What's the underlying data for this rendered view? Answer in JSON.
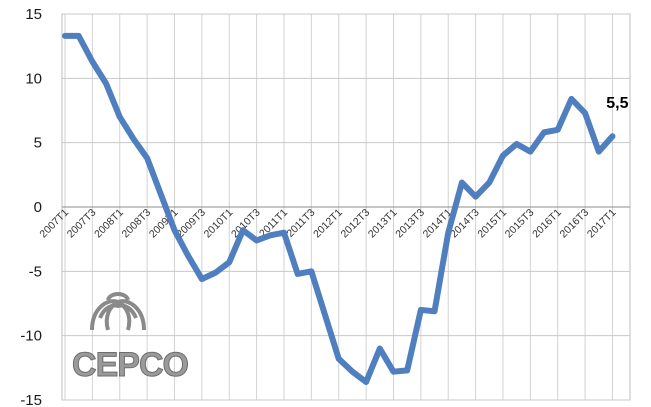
{
  "chart_data": {
    "type": "line",
    "title": "",
    "xlabel": "",
    "ylabel": "",
    "ylim": [
      -15,
      15
    ],
    "yticks": [
      15,
      10,
      5,
      0,
      -5,
      -10,
      -15
    ],
    "ytick_labels": [
      "15",
      "10",
      "5",
      "0",
      "-5",
      "-10",
      "-15"
    ],
    "grid": true,
    "legend": "none",
    "x_tick_labels": [
      {
        "index": 0,
        "label": "2007T1"
      },
      {
        "index": 2,
        "label": "2007T3"
      },
      {
        "index": 4,
        "label": "2008T1"
      },
      {
        "index": 6,
        "label": "2008T3"
      },
      {
        "index": 8,
        "label": "2009T1"
      },
      {
        "index": 10,
        "label": "2009T3"
      },
      {
        "index": 12,
        "label": "2010T1"
      },
      {
        "index": 14,
        "label": "2010T3"
      },
      {
        "index": 16,
        "label": "2011T1"
      },
      {
        "index": 18,
        "label": "2011T3"
      },
      {
        "index": 20,
        "label": "2012T1"
      },
      {
        "index": 22,
        "label": "2012T3"
      },
      {
        "index": 24,
        "label": "2013T1"
      },
      {
        "index": 26,
        "label": "2013T3"
      },
      {
        "index": 28,
        "label": "2014T1"
      },
      {
        "index": 30,
        "label": "2014T3"
      },
      {
        "index": 32,
        "label": "2015T1"
      },
      {
        "index": 34,
        "label": "2015T3"
      },
      {
        "index": 36,
        "label": "2016T1"
      },
      {
        "index": 38,
        "label": "2016T3"
      },
      {
        "index": 40,
        "label": "2017T1"
      }
    ],
    "series": [
      {
        "color": "#4f7fbf",
        "values": [
          13.3,
          13.3,
          11.3,
          9.6,
          7.0,
          5.3,
          3.8,
          1.0,
          -1.8,
          -3.8,
          -5.6,
          -5.1,
          -4.3,
          -1.8,
          -2.6,
          -2.2,
          -2.0,
          -5.2,
          -5.0,
          -8.4,
          -11.8,
          -12.8,
          -13.6,
          -11.0,
          -12.8,
          -12.7,
          -8.0,
          -8.1,
          -2.0,
          1.9,
          0.8,
          1.9,
          4.0,
          4.9,
          4.3,
          5.8,
          6.0,
          8.4,
          7.3,
          4.3,
          5.5
        ]
      }
    ],
    "annotations": [
      {
        "text": "5,5",
        "point_index": 40
      }
    ]
  },
  "logo": {
    "text": "CEPCO",
    "color": "#8c8c8c"
  }
}
